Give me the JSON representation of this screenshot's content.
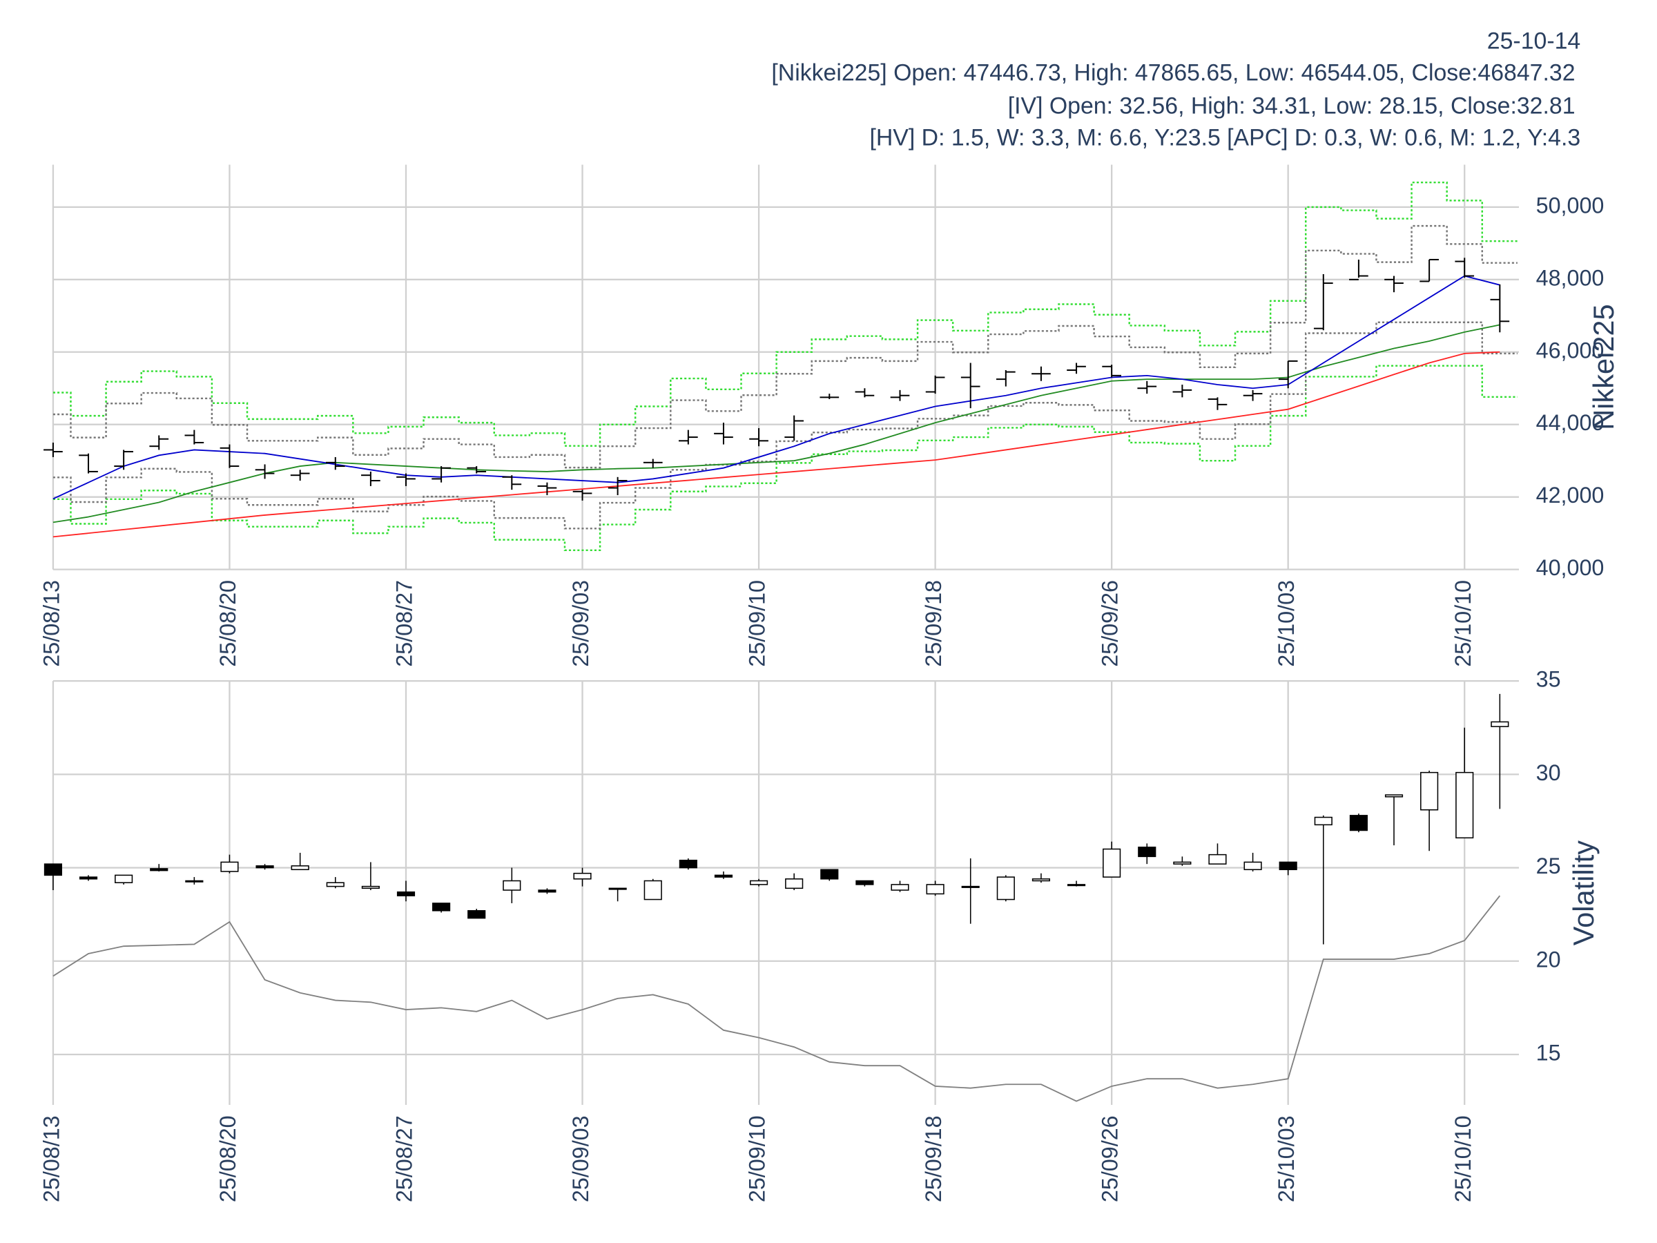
{
  "header": {
    "date": "25-10-14",
    "lines": [
      "[Nikkei225] Open: 47446.73, High: 47865.65, Low: 46544.05, Close:46847.32",
      "[IV] Open: 32.56, High: 34.31, Low: 28.15, Close:32.81",
      "[HV] D: 1.5, W: 3.3, M: 6.6, Y:23.5 [APC] D: 0.3, W: 0.6, M: 1.2, Y:4.3"
    ]
  },
  "chart_data": [
    {
      "type": "ohlc",
      "ylabel": "Nikkei225",
      "categories": [
        "25/08/13",
        null,
        null,
        null,
        null,
        "25/08/20",
        null,
        null,
        null,
        null,
        "25/08/27",
        null,
        null,
        null,
        null,
        "25/09/03",
        null,
        null,
        null,
        null,
        "25/09/10",
        null,
        null,
        null,
        null,
        "25/09/18",
        null,
        null,
        null,
        null,
        "25/09/26",
        null,
        null,
        null,
        null,
        "25/10/03",
        null,
        null,
        null,
        null,
        "25/10/10",
        null
      ],
      "open": [
        43300,
        43150,
        42850,
        43400,
        43700,
        43350,
        42750,
        42600,
        42950,
        42600,
        42550,
        42500,
        42800,
        42550,
        42300,
        42150,
        42250,
        42950,
        43550,
        43750,
        43600,
        43650,
        44750,
        44900,
        44750,
        44900,
        45300,
        45250,
        45400,
        45500,
        45600,
        45000,
        44900,
        44700,
        44800,
        45250,
        46650,
        48000,
        48000,
        47950,
        48500,
        47446.73
      ],
      "high": [
        43500,
        43200,
        43300,
        43700,
        43850,
        43450,
        42900,
        42750,
        43100,
        42700,
        42650,
        42850,
        42850,
        42600,
        42400,
        42200,
        42550,
        43050,
        43850,
        44050,
        43900,
        44250,
        44850,
        45000,
        44950,
        45350,
        45700,
        45500,
        45600,
        45700,
        45650,
        45200,
        45100,
        44750,
        44950,
        45750,
        48150,
        48550,
        48100,
        48550,
        48600,
        47865.65
      ],
      "low": [
        43100,
        42650,
        42750,
        43300,
        43450,
        42800,
        42500,
        42450,
        42750,
        42300,
        42300,
        42400,
        42650,
        42200,
        42050,
        41900,
        42050,
        42800,
        43450,
        43450,
        43400,
        43550,
        44700,
        44750,
        44650,
        44850,
        44450,
        45050,
        45200,
        45400,
        45300,
        44850,
        44750,
        44400,
        44650,
        45000,
        46600,
        48050,
        47650,
        47950,
        48050,
        46544.05
      ],
      "close": [
        43250,
        42700,
        43250,
        43600,
        43500,
        42850,
        42650,
        42650,
        42850,
        42450,
        42500,
        42800,
        42700,
        42350,
        42250,
        42100,
        42450,
        42950,
        43650,
        43650,
        43550,
        44100,
        44750,
        44800,
        44800,
        45300,
        45050,
        45450,
        45400,
        45600,
        45350,
        45050,
        44950,
        44550,
        44850,
        45750,
        47900,
        48100,
        47900,
        48550,
        48100,
        46847.32
      ],
      "bar_color": "#000000",
      "series": [
        {
          "color": "#33dd33",
          "dash": "dotted",
          "shape": "step",
          "values": [
            44880,
            44240,
            45180,
            45470,
            45320,
            44590,
            44150,
            44150,
            44240,
            43760,
            43940,
            44200,
            44050,
            43700,
            43760,
            43410,
            44000,
            44500,
            45270,
            44970,
            45410,
            46000,
            46350,
            46440,
            46350,
            46880,
            46590,
            47090,
            47180,
            47320,
            47030,
            46730,
            46590,
            46180,
            46560,
            47410,
            50000,
            49910,
            49680,
            50680,
            50180,
            49060
          ]
        },
        {
          "color": "#33dd33",
          "dash": "dotted",
          "shape": "step",
          "values": [
            41940,
            41260,
            41940,
            42180,
            42090,
            41350,
            41180,
            41180,
            41350,
            41000,
            41180,
            41410,
            41290,
            40820,
            40820,
            40530,
            41240,
            41650,
            42150,
            42290,
            42380,
            42940,
            43180,
            43260,
            43290,
            43560,
            43650,
            43910,
            44000,
            43940,
            43790,
            43500,
            43470,
            43000,
            43410,
            44240,
            45320,
            45320,
            45620,
            45620,
            45620,
            44760
          ]
        },
        {
          "color": "#777777",
          "dash": "dotted",
          "shape": "step",
          "values": [
            44280,
            43640,
            44580,
            44870,
            44720,
            43990,
            43550,
            43550,
            43640,
            43160,
            43340,
            43600,
            43450,
            43100,
            43160,
            42810,
            43400,
            43900,
            44670,
            44370,
            44810,
            45400,
            45750,
            45840,
            45750,
            46280,
            45990,
            46490,
            46580,
            46720,
            46430,
            46130,
            45990,
            45580,
            45960,
            46810,
            48800,
            48710,
            48480,
            49480,
            48980,
            48460
          ]
        },
        {
          "color": "#777777",
          "dash": "dotted",
          "shape": "step",
          "values": [
            42540,
            41860,
            42540,
            42780,
            42690,
            41950,
            41780,
            41780,
            41950,
            41600,
            41780,
            42010,
            41890,
            41420,
            41420,
            41130,
            41840,
            42250,
            42750,
            42890,
            42980,
            43540,
            43780,
            43860,
            43890,
            44160,
            44250,
            44510,
            44600,
            44540,
            44390,
            44100,
            44070,
            43600,
            44010,
            44840,
            46520,
            46520,
            46820,
            46820,
            46820,
            45960
          ]
        },
        {
          "color": "#ff2222",
          "shape": "linear",
          "values": [
            40900,
            41000,
            41100,
            41200,
            41300,
            41400,
            41500,
            41580,
            41660,
            41740,
            41820,
            41900,
            41980,
            42060,
            42140,
            42220,
            42300,
            42380,
            42460,
            42540,
            42620,
            42700,
            42780,
            42860,
            42940,
            43020,
            43160,
            43300,
            43440,
            43580,
            43720,
            43860,
            44000,
            44140,
            44280,
            44420,
            44740,
            45060,
            45380,
            45700,
            45960,
            46000
          ]
        },
        {
          "color": "#228b22",
          "shape": "linear",
          "values": [
            41300,
            41450,
            41650,
            41850,
            42150,
            42400,
            42650,
            42850,
            42950,
            42900,
            42850,
            42800,
            42750,
            42720,
            42700,
            42750,
            42780,
            42800,
            42850,
            42900,
            42950,
            43000,
            43200,
            43450,
            43750,
            44050,
            44300,
            44550,
            44800,
            45000,
            45200,
            45250,
            45250,
            45250,
            45250,
            45300,
            45600,
            45850,
            46100,
            46300,
            46550,
            46750
          ]
        },
        {
          "color": "#0000cc",
          "shape": "linear",
          "values": [
            41950,
            42400,
            42850,
            43150,
            43300,
            43250,
            43200,
            43050,
            42900,
            42750,
            42600,
            42550,
            42600,
            42550,
            42500,
            42450,
            42400,
            42500,
            42650,
            42800,
            43100,
            43400,
            43750,
            44000,
            44250,
            44500,
            44650,
            44800,
            45000,
            45150,
            45300,
            45350,
            45250,
            45100,
            45000,
            45100,
            45700,
            46300,
            46900,
            47500,
            48100,
            47850
          ]
        }
      ],
      "ylim": [
        40000,
        51170
      ],
      "yticks": [
        {
          "value": 40000,
          "label": "40,000"
        },
        {
          "value": 42000,
          "label": "42,000"
        },
        {
          "value": 44000,
          "label": "44,000"
        },
        {
          "value": 46000,
          "label": "46,000"
        },
        {
          "value": 48000,
          "label": "48,000"
        },
        {
          "value": 50000,
          "label": "50,000"
        }
      ],
      "grid": true
    },
    {
      "type": "candlestick",
      "ylabel": "Volatility",
      "categories": [
        "25/08/13",
        null,
        null,
        null,
        null,
        "25/08/20",
        null,
        null,
        null,
        null,
        "25/08/27",
        null,
        null,
        null,
        null,
        "25/09/03",
        null,
        null,
        null,
        null,
        "25/09/10",
        null,
        null,
        null,
        null,
        "25/09/18",
        null,
        null,
        null,
        null,
        "25/09/26",
        null,
        null,
        null,
        null,
        "25/10/03",
        null,
        null,
        null,
        null,
        "25/10/10",
        null
      ],
      "open": [
        25.2,
        24.5,
        24.2,
        24.95,
        24.3,
        24.8,
        25.1,
        24.9,
        24.0,
        23.9,
        23.7,
        23.1,
        22.7,
        23.8,
        23.8,
        24.4,
        23.9,
        23.3,
        25.4,
        24.6,
        24.1,
        23.9,
        24.9,
        24.3,
        23.8,
        23.6,
        24.0,
        23.3,
        24.3,
        24.1,
        24.5,
        26.1,
        25.2,
        25.2,
        24.9,
        25.3,
        27.3,
        27.8,
        28.8,
        28.1,
        26.6,
        32.56
      ],
      "high": [
        25.2,
        24.6,
        24.6,
        25.2,
        24.5,
        25.7,
        25.2,
        25.8,
        24.5,
        25.3,
        24.3,
        23.1,
        22.8,
        25.0,
        23.9,
        25.0,
        23.9,
        24.4,
        25.5,
        24.8,
        24.4,
        24.7,
        24.9,
        24.3,
        24.3,
        24.3,
        25.5,
        24.6,
        24.7,
        24.3,
        26.4,
        26.3,
        25.6,
        26.3,
        25.8,
        25.3,
        27.8,
        27.9,
        28.9,
        30.2,
        32.5,
        34.31
      ],
      "low": [
        23.8,
        24.3,
        24.1,
        24.8,
        24.1,
        24.7,
        24.9,
        24.9,
        23.9,
        23.8,
        23.2,
        22.6,
        22.3,
        23.1,
        23.6,
        24.0,
        23.2,
        23.3,
        24.9,
        24.4,
        24.0,
        23.8,
        24.3,
        24.0,
        23.7,
        23.5,
        22.0,
        23.2,
        24.2,
        24.0,
        24.5,
        25.2,
        25.1,
        25.2,
        24.8,
        24.6,
        20.9,
        26.9,
        26.2,
        25.9,
        26.6,
        28.15
      ],
      "close": [
        24.6,
        24.4,
        24.6,
        24.85,
        24.3,
        25.3,
        25.0,
        25.1,
        24.2,
        24.0,
        23.5,
        22.7,
        22.3,
        24.3,
        23.7,
        24.7,
        23.9,
        24.3,
        25.0,
        24.5,
        24.3,
        24.4,
        24.4,
        24.1,
        24.1,
        24.1,
        24.0,
        24.5,
        24.4,
        24.1,
        26.0,
        25.6,
        25.3,
        25.7,
        25.3,
        24.9,
        27.7,
        27.0,
        28.9,
        30.1,
        30.1,
        32.81
      ],
      "increasing_color": "#ffffff",
      "decreasing_color": "#000000",
      "series": [
        {
          "color": "#808080",
          "shape": "linear",
          "values": [
            19.2,
            20.4,
            20.8,
            20.85,
            20.9,
            22.1,
            19.0,
            18.3,
            17.9,
            17.8,
            17.4,
            17.5,
            17.3,
            17.9,
            16.9,
            17.4,
            18.0,
            18.2,
            17.7,
            16.3,
            15.9,
            15.4,
            14.6,
            14.4,
            14.4,
            13.3,
            13.2,
            13.4,
            13.4,
            12.5,
            13.3,
            13.7,
            13.7,
            13.2,
            13.4,
            13.7,
            20.1,
            20.1,
            20.1,
            20.4,
            21.1,
            23.5
          ]
        }
      ],
      "ylim": [
        12.3,
        35
      ],
      "yticks": [
        15,
        20,
        25,
        30,
        35
      ],
      "grid": true
    }
  ]
}
